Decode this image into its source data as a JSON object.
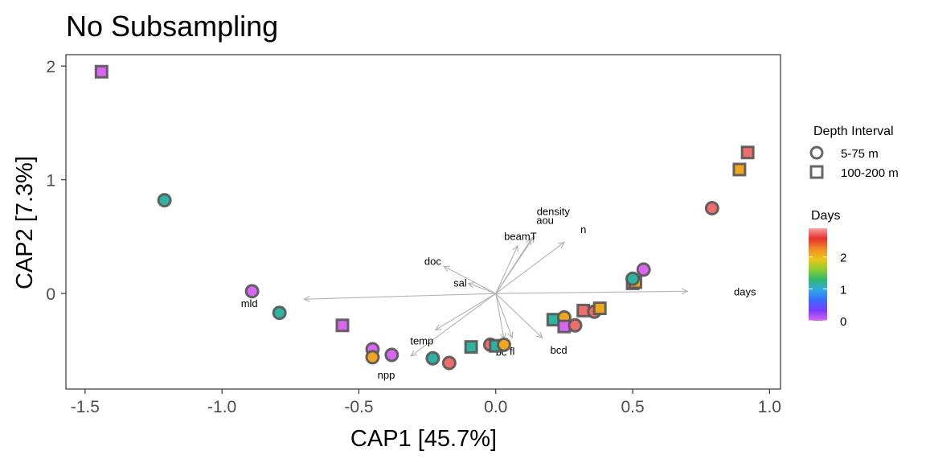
{
  "chart_data": {
    "type": "scatter",
    "title": "No Subsampling",
    "xlabel": "CAP1   [45.7%]",
    "ylabel": "CAP2   [7.3%]",
    "xlim": [
      -1.57,
      1.04
    ],
    "ylim": [
      -0.84,
      2.1
    ],
    "x_ticks": [
      -1.5,
      -1.0,
      -0.5,
      0.0,
      0.5,
      1.0
    ],
    "x_tick_labels": [
      "-1.5",
      "-1.0",
      "-0.5",
      "0.0",
      "0.5",
      "1.0"
    ],
    "y_ticks": [
      0,
      1,
      2
    ],
    "y_tick_labels": [
      "0",
      "1",
      "2"
    ],
    "grid": false,
    "legend": {
      "placement": "right",
      "shape_title": "Depth Interval",
      "shapes": [
        {
          "label": "5-75 m",
          "shape": "circle"
        },
        {
          "label": "100-200 m",
          "shape": "square"
        }
      ],
      "color_title": "Days",
      "color_ticks": [
        0,
        1,
        2
      ],
      "color_tick_labels": [
        "0",
        "1",
        "2"
      ],
      "color_range": [
        0,
        2.9
      ],
      "color_stops": [
        "#d966f2",
        "#7a3cff",
        "#3a6bff",
        "#31a9e6",
        "#2fb86b",
        "#8fcc2e",
        "#f0c419",
        "#f08a24",
        "#e83030",
        "#f4a3a3"
      ]
    },
    "points": [
      {
        "x": -1.44,
        "y": 1.95,
        "shape": "square",
        "days": 0.0
      },
      {
        "x": -1.21,
        "y": 0.82,
        "shape": "circle",
        "days": 1.15
      },
      {
        "x": -0.89,
        "y": 0.02,
        "shape": "circle",
        "days": 0.0
      },
      {
        "x": -0.79,
        "y": -0.17,
        "shape": "circle",
        "days": 1.15
      },
      {
        "x": -0.56,
        "y": -0.28,
        "shape": "square",
        "days": 0.0
      },
      {
        "x": -0.45,
        "y": -0.49,
        "shape": "circle",
        "days": 0.0
      },
      {
        "x": -0.45,
        "y": -0.56,
        "shape": "circle",
        "days": 2.1
      },
      {
        "x": -0.38,
        "y": -0.54,
        "shape": "circle",
        "days": 0.0
      },
      {
        "x": -0.23,
        "y": -0.57,
        "shape": "circle",
        "days": 1.15
      },
      {
        "x": -0.17,
        "y": -0.61,
        "shape": "circle",
        "days": 2.75
      },
      {
        "x": -0.09,
        "y": -0.47,
        "shape": "square",
        "days": 1.15
      },
      {
        "x": -0.02,
        "y": -0.45,
        "shape": "circle",
        "days": 2.75
      },
      {
        "x": 0.0,
        "y": -0.46,
        "shape": "square",
        "days": 1.15
      },
      {
        "x": 0.03,
        "y": -0.45,
        "shape": "circle",
        "days": 2.1
      },
      {
        "x": 0.21,
        "y": -0.23,
        "shape": "square",
        "days": 1.15
      },
      {
        "x": 0.25,
        "y": -0.21,
        "shape": "circle",
        "days": 2.1
      },
      {
        "x": 0.25,
        "y": -0.29,
        "shape": "square",
        "days": 0.0
      },
      {
        "x": 0.29,
        "y": -0.28,
        "shape": "circle",
        "days": 2.75
      },
      {
        "x": 0.32,
        "y": -0.15,
        "shape": "square",
        "days": 2.75
      },
      {
        "x": 0.36,
        "y": -0.16,
        "shape": "circle",
        "days": 2.75
      },
      {
        "x": 0.38,
        "y": -0.13,
        "shape": "square",
        "days": 2.1
      },
      {
        "x": 0.5,
        "y": 0.09,
        "shape": "square",
        "days": 2.75
      },
      {
        "x": 0.51,
        "y": 0.1,
        "shape": "square",
        "days": 2.1
      },
      {
        "x": 0.5,
        "y": 0.13,
        "shape": "circle",
        "days": 1.15
      },
      {
        "x": 0.54,
        "y": 0.21,
        "shape": "circle",
        "days": 0.0
      },
      {
        "x": 0.79,
        "y": 0.75,
        "shape": "circle",
        "days": 2.75
      },
      {
        "x": 0.89,
        "y": 1.09,
        "shape": "square",
        "days": 2.1
      },
      {
        "x": 0.92,
        "y": 1.24,
        "shape": "square",
        "days": 2.75
      }
    ],
    "vectors": [
      {
        "name": "density",
        "x": 0.14,
        "y": 0.5
      },
      {
        "name": "aou",
        "x": 0.13,
        "y": 0.48
      },
      {
        "name": "beamT",
        "x": 0.08,
        "y": 0.42
      },
      {
        "name": "n",
        "x": 0.25,
        "y": 0.45
      },
      {
        "name": "doc",
        "x": -0.19,
        "y": 0.24
      },
      {
        "name": "sal",
        "x": -0.1,
        "y": 0.09
      },
      {
        "name": "days",
        "x": 0.7,
        "y": 0.02
      },
      {
        "name": "mld",
        "x": -0.7,
        "y": -0.05
      },
      {
        "name": "temp",
        "x": -0.22,
        "y": -0.32
      },
      {
        "name": "npp",
        "x": -0.31,
        "y": -0.55
      },
      {
        "name": "bcd",
        "x": 0.17,
        "y": -0.39
      },
      {
        "name": "bc",
        "x": 0.03,
        "y": -0.4
      },
      {
        "name": "fl",
        "x": 0.06,
        "y": -0.39
      }
    ],
    "vector_labels": [
      {
        "text": "density",
        "x": 0.21,
        "y": 0.72
      },
      {
        "text": "aou",
        "x": 0.18,
        "y": 0.64
      },
      {
        "text": "beamT",
        "x": 0.09,
        "y": 0.5
      },
      {
        "text": "n",
        "x": 0.32,
        "y": 0.56
      },
      {
        "text": "doc",
        "x": -0.23,
        "y": 0.28
      },
      {
        "text": "sal",
        "x": -0.13,
        "y": 0.09
      },
      {
        "text": "days",
        "x": 0.91,
        "y": 0.01
      },
      {
        "text": "mld",
        "x": -0.9,
        "y": -0.09
      },
      {
        "text": "temp",
        "x": -0.27,
        "y": -0.42
      },
      {
        "text": "npp",
        "x": -0.4,
        "y": -0.72
      },
      {
        "text": "bcd",
        "x": 0.23,
        "y": -0.5
      },
      {
        "text": "bc",
        "x": 0.02,
        "y": -0.52
      },
      {
        "text": "fl",
        "x": 0.06,
        "y": -0.51
      }
    ]
  }
}
